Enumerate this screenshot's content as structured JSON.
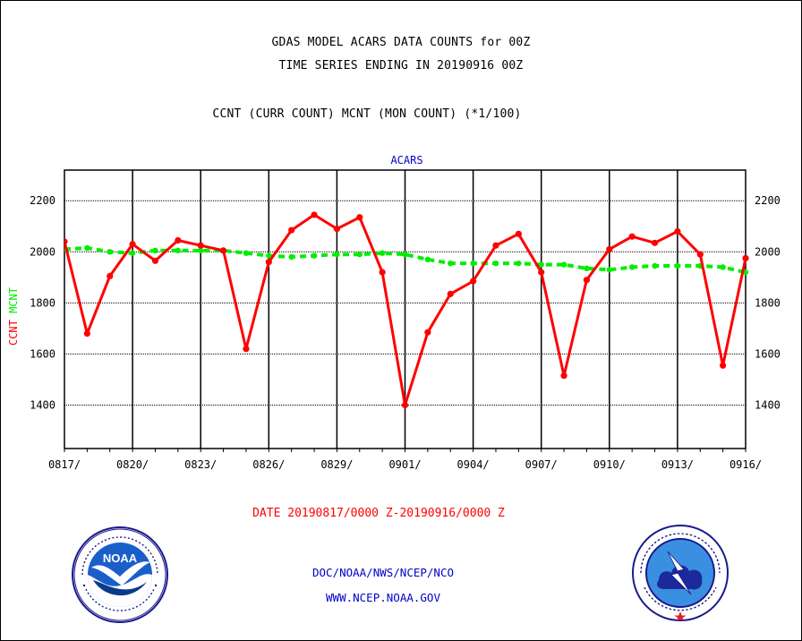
{
  "header": {
    "line1": "GDAS MODEL ACARS DATA COUNTS for 00Z",
    "line2": "TIME SERIES ENDING IN 20190916 00Z",
    "line3": "CCNT (CURR COUNT) MCNT (MON COUNT) (*1/100)"
  },
  "footer": {
    "date_range": "DATE 20190817/0000 Z-20190916/0000 Z",
    "org_line": "DOC/NOAA/NWS/NCEP/NCO",
    "url_line": "WWW.NCEP.NOAA.GOV"
  },
  "logos": {
    "noaa_text": "NOAA",
    "nws_text": "NATIONAL WEATHER SERVICE"
  },
  "colors": {
    "ccnt": "#ff0000",
    "mcnt": "#00ee00",
    "subtitle": "#0000cc"
  },
  "chart_data": {
    "type": "line",
    "title": "ACARS",
    "ylabel_parts": [
      "CCNT",
      "MCNT"
    ],
    "x_ticks": [
      "0817/",
      "0820/",
      "0823/",
      "0826/",
      "0829/",
      "0901/",
      "0904/",
      "0907/",
      "0910/",
      "0913/",
      "0916/"
    ],
    "y_ticks": [
      1400,
      1600,
      1800,
      2000,
      2200
    ],
    "ylim": [
      1230,
      2320
    ],
    "xlim": [
      0,
      30
    ],
    "grid": true,
    "series": [
      {
        "name": "CCNT",
        "style": "solid",
        "x": [
          0,
          1,
          2,
          3,
          4,
          5,
          6,
          7,
          8,
          9,
          10,
          11,
          12,
          13,
          14,
          15,
          16,
          17,
          18,
          19,
          20,
          21,
          22,
          23,
          24,
          25,
          26,
          27,
          28,
          29,
          30
        ],
        "values": [
          2040,
          1680,
          1905,
          2030,
          1965,
          2045,
          2025,
          2005,
          1620,
          1960,
          2085,
          2145,
          2090,
          2135,
          1920,
          1400,
          1685,
          1835,
          1885,
          2025,
          2070,
          1920,
          1515,
          1890,
          2010,
          2060,
          2035,
          2080,
          1990,
          1555,
          1975
        ]
      },
      {
        "name": "MCNT",
        "style": "dashed",
        "x": [
          0,
          1,
          2,
          3,
          4,
          5,
          6,
          7,
          8,
          9,
          10,
          11,
          12,
          13,
          14,
          15,
          16,
          17,
          18,
          19,
          20,
          21,
          22,
          23,
          24,
          25,
          26,
          27,
          28,
          29,
          30
        ],
        "values": [
          2010,
          2015,
          2000,
          1995,
          2005,
          2005,
          2005,
          2005,
          1995,
          1985,
          1980,
          1985,
          1990,
          1990,
          1995,
          1990,
          1970,
          1955,
          1955,
          1955,
          1955,
          1950,
          1950,
          1935,
          1930,
          1940,
          1945,
          1945,
          1945,
          1940,
          1920
        ]
      }
    ]
  }
}
